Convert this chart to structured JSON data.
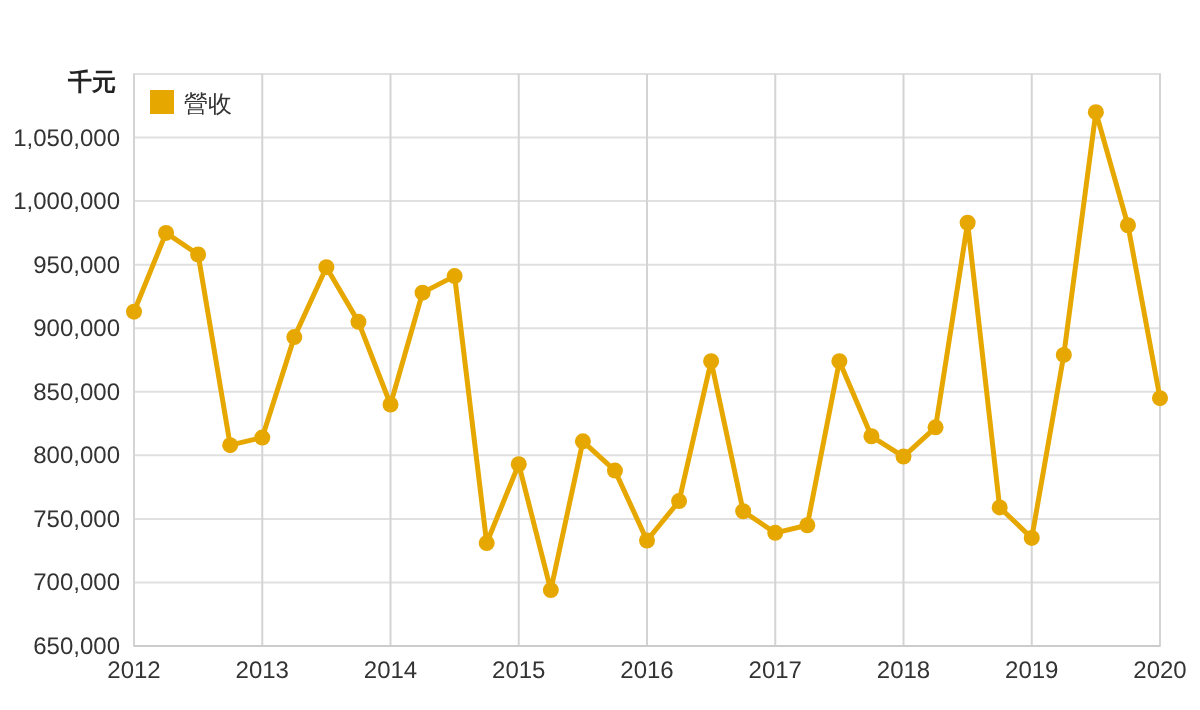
{
  "chart_data": {
    "type": "line",
    "ylabel": "千元",
    "x": [
      2012,
      2012.25,
      2012.5,
      2012.75,
      2013,
      2013.25,
      2013.5,
      2013.75,
      2014,
      2014.25,
      2014.5,
      2014.75,
      2015,
      2015.25,
      2015.5,
      2015.75,
      2016,
      2016.25,
      2016.5,
      2016.75,
      2017,
      2017.25,
      2017.5,
      2017.75,
      2018,
      2018.25,
      2018.5,
      2018.75,
      2019,
      2019.25,
      2019.5,
      2019.75,
      2020
    ],
    "series": [
      {
        "name": "營收",
        "color": "#e6a800",
        "values": [
          913000,
          975000,
          958000,
          808000,
          814000,
          893000,
          948000,
          905000,
          840000,
          928000,
          941000,
          731000,
          793000,
          694000,
          811000,
          788000,
          733000,
          764000,
          874000,
          756000,
          739000,
          745000,
          874000,
          815000,
          799000,
          822000,
          983000,
          759000,
          735000,
          879000,
          1070000,
          981000,
          845000
        ]
      }
    ],
    "xlim": [
      2012,
      2020
    ],
    "xticks": [
      2012,
      2013,
      2014,
      2015,
      2016,
      2017,
      2018,
      2019,
      2020
    ],
    "ylim": [
      650000,
      1100000
    ],
    "yticks": [
      {
        "value": 650000,
        "label": "650,000"
      },
      {
        "value": 700000,
        "label": "700,000"
      },
      {
        "value": 750000,
        "label": "750,000"
      },
      {
        "value": 800000,
        "label": "800,000"
      },
      {
        "value": 850000,
        "label": "850,000"
      },
      {
        "value": 900000,
        "label": "900,000"
      },
      {
        "value": 950000,
        "label": "950,000"
      },
      {
        "value": 1000000,
        "label": "1,000,000"
      },
      {
        "value": 1050000,
        "label": "1,050,000"
      }
    ],
    "grid": true,
    "legend": "top left",
    "marker": "circle",
    "line_style": "solid"
  }
}
